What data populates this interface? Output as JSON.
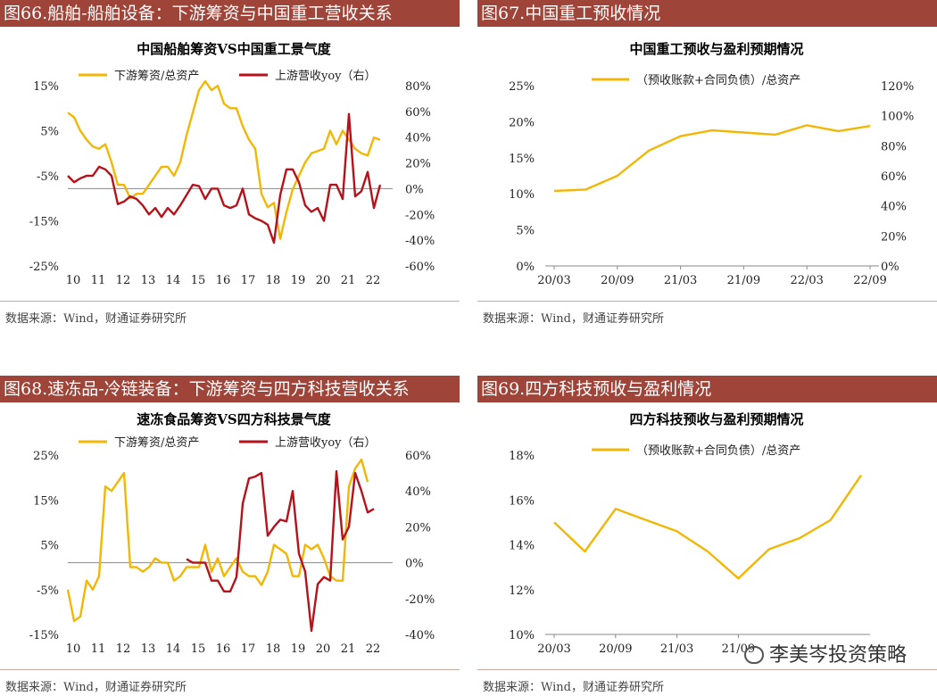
{
  "panels": [
    {
      "banner": "图66.船舶-船舶设备：下游筹资与中国重工营收关系",
      "source": "数据来源：Wind，财通证券研究所"
    },
    {
      "banner": "图67.中国重工预收情况",
      "source": "数据来源：Wind，财通证券研究所"
    },
    {
      "banner": "图68.速冻品-冷链装备：下游筹资与四方科技营收关系",
      "source": "数据来源：Wind，财通证券研究所"
    },
    {
      "banner": "图69.四方科技预收与盈利情况",
      "source": "数据来源：Wind，财通证券研究所"
    }
  ],
  "watermark": "李美岑投资策略",
  "chart_data": [
    {
      "type": "line",
      "title": "中国船舶筹资VS中国重工景气度",
      "xtick_labels": [
        "10",
        "11",
        "12",
        "13",
        "14",
        "15",
        "16",
        "17",
        "18",
        "19",
        "20",
        "21",
        "22"
      ],
      "left_ytick_labels": [
        "15%",
        "5%",
        "-5%",
        "-15%",
        "-25%"
      ],
      "right_ytick_labels": [
        "80%",
        "60%",
        "40%",
        "20%",
        "0%",
        "-20%",
        "-40%",
        "-60%"
      ],
      "ylim_left": [
        -25,
        15
      ],
      "ylim_right": [
        -60,
        80
      ],
      "x_range": [
        2010,
        2023
      ],
      "series": [
        {
          "name": "下游筹资/总资产",
          "axis": "left",
          "color": "#f2b705",
          "x": [
            2010.0,
            2010.25,
            2010.5,
            2010.75,
            2011.0,
            2011.25,
            2011.5,
            2011.75,
            2012.0,
            2012.25,
            2012.5,
            2012.75,
            2013.0,
            2013.25,
            2013.5,
            2013.75,
            2014.0,
            2014.25,
            2014.5,
            2014.75,
            2015.0,
            2015.25,
            2015.5,
            2015.75,
            2016.0,
            2016.25,
            2016.5,
            2016.75,
            2017.0,
            2017.25,
            2017.5,
            2017.75,
            2018.0,
            2018.25,
            2018.5,
            2018.75,
            2019.0,
            2019.25,
            2019.5,
            2019.75,
            2020.0,
            2020.25,
            2020.5,
            2020.75,
            2021.0,
            2021.25,
            2021.5,
            2021.75,
            2022.0,
            2022.25,
            2022.5
          ],
          "values": [
            9,
            8,
            5,
            3,
            1.5,
            1,
            2,
            -2,
            -7,
            -7,
            -10,
            -9,
            -9,
            -7,
            -5,
            -3,
            -3,
            -5,
            -2,
            4,
            9,
            14,
            16,
            14,
            15,
            11,
            10,
            10,
            6,
            3,
            1,
            -9,
            -12,
            -11,
            -19,
            -13,
            -8,
            -5,
            -2,
            0,
            0.5,
            1,
            5,
            2,
            5,
            3,
            1,
            0,
            -0.5,
            3.5,
            3
          ]
        },
        {
          "name": "上游营收yoy（右）",
          "axis": "right",
          "color": "#b5121b",
          "x": [
            2010.0,
            2010.25,
            2010.5,
            2010.75,
            2011.0,
            2011.25,
            2011.5,
            2011.75,
            2012.0,
            2012.25,
            2012.5,
            2012.75,
            2013.0,
            2013.25,
            2013.5,
            2013.75,
            2014.0,
            2014.25,
            2014.5,
            2014.75,
            2015.0,
            2015.25,
            2015.5,
            2015.75,
            2016.0,
            2016.25,
            2016.5,
            2016.75,
            2017.0,
            2017.25,
            2017.5,
            2017.75,
            2018.0,
            2018.25,
            2018.5,
            2018.75,
            2019.0,
            2019.25,
            2019.5,
            2019.75,
            2020.0,
            2020.25,
            2020.5,
            2020.75,
            2021.0,
            2021.25,
            2021.5,
            2021.75,
            2022.0,
            2022.25,
            2022.5
          ],
          "values": [
            10,
            5,
            8,
            10,
            10,
            17,
            15,
            10,
            -12,
            -10,
            -6,
            -8,
            -13,
            -20,
            -15,
            -22,
            -15,
            -20,
            -13,
            -5,
            3,
            2,
            -8,
            0,
            0,
            -13,
            -15,
            -13,
            0,
            -20,
            -23,
            -25,
            -28,
            -42,
            -5,
            15,
            15,
            5,
            -13,
            -18,
            -15,
            -25,
            3,
            3,
            -8,
            58,
            -6,
            -2,
            13,
            -15,
            3
          ]
        }
      ]
    },
    {
      "type": "line",
      "title": "中国重工预收与盈利预期情况",
      "xtick_labels": [
        "20/03",
        "20/09",
        "21/03",
        "21/09",
        "22/03",
        "22/09"
      ],
      "left_ytick_labels": [
        "25%",
        "20%",
        "15%",
        "10%",
        "5%",
        "0%"
      ],
      "right_ytick_labels": [
        "120%",
        "100%",
        "80%",
        "60%",
        "40%",
        "20%",
        "0%"
      ],
      "ylim_left": [
        0,
        25
      ],
      "ylim_right": [
        0,
        120
      ],
      "series": [
        {
          "name": "（预收账款+合同负债）/总资产",
          "axis": "left",
          "color": "#f2b705",
          "x": [
            0,
            0.5,
            1,
            1.5,
            2,
            2.5,
            3,
            3.5,
            4,
            4.5,
            5
          ],
          "values": [
            10.4,
            10.6,
            12.5,
            16,
            18,
            18.8,
            18.5,
            18.2,
            19.5,
            18.7,
            19.4
          ]
        }
      ]
    },
    {
      "type": "line",
      "title": "速冻食品筹资VS四方科技景气度",
      "xtick_labels": [
        "10",
        "11",
        "12",
        "13",
        "14",
        "15",
        "16",
        "17",
        "18",
        "19",
        "20",
        "21",
        "22"
      ],
      "left_ytick_labels": [
        "25%",
        "15%",
        "5%",
        "-5%",
        "-15%"
      ],
      "right_ytick_labels": [
        "60%",
        "40%",
        "20%",
        "0%",
        "-20%",
        "-40%"
      ],
      "ylim_left": [
        -15,
        25
      ],
      "ylim_right": [
        -40,
        60
      ],
      "x_range": [
        2010,
        2023
      ],
      "series": [
        {
          "name": "下游筹资/总资产",
          "axis": "left",
          "color": "#f2b705",
          "x": [
            2010.0,
            2010.25,
            2010.5,
            2010.75,
            2011.0,
            2011.25,
            2011.5,
            2011.75,
            2012.0,
            2012.25,
            2012.5,
            2012.75,
            2013.0,
            2013.25,
            2013.5,
            2013.75,
            2014.0,
            2014.25,
            2014.5,
            2014.75,
            2015.0,
            2015.25,
            2015.5,
            2015.75,
            2016.0,
            2016.25,
            2016.5,
            2016.75,
            2017.0,
            2017.25,
            2017.5,
            2017.75,
            2018.0,
            2018.25,
            2018.5,
            2018.75,
            2019.0,
            2019.25,
            2019.5,
            2019.75,
            2020.0,
            2020.25,
            2020.5,
            2020.75,
            2021.0,
            2021.25,
            2021.5,
            2021.75,
            2022.0,
            2022.25,
            2022.5
          ],
          "values": [
            -5,
            -12,
            -11,
            -3,
            -5,
            -2,
            18,
            17,
            19,
            21,
            0,
            0,
            -1,
            0,
            2,
            1,
            1,
            -3,
            -2,
            0,
            0,
            0,
            5,
            -1,
            2,
            -2,
            0,
            2,
            -1,
            -2,
            -2,
            -4,
            -1,
            5,
            4,
            3,
            -2,
            -2,
            5,
            4,
            5,
            2,
            -2,
            -3,
            -3,
            18,
            22,
            24,
            19,
            null,
            null
          ]
        },
        {
          "name": "上游营收yoy（右）",
          "axis": "right",
          "color": "#b5121b",
          "x": [
            2014.75,
            2015.0,
            2015.25,
            2015.5,
            2015.75,
            2016.0,
            2016.25,
            2016.5,
            2016.75,
            2017.0,
            2017.25,
            2017.5,
            2017.75,
            2018.0,
            2018.25,
            2018.5,
            2018.75,
            2019.0,
            2019.25,
            2019.5,
            2019.75,
            2020.0,
            2020.25,
            2020.5,
            2020.75,
            2021.0,
            2021.25,
            2021.5,
            2021.75,
            2022.0,
            2022.25,
            2022.5
          ],
          "values": [
            2,
            0,
            0,
            0,
            -10,
            -10,
            -16,
            -16,
            -8,
            33,
            47,
            48,
            50,
            15,
            20,
            24,
            23,
            40,
            5,
            -5,
            -38,
            -12,
            -8,
            -10,
            51,
            13,
            20,
            50,
            40,
            28,
            30,
            null
          ]
        }
      ]
    },
    {
      "type": "line",
      "title": "四方科技预收与盈利预期情况",
      "xtick_labels": [
        "20/03",
        "20/09",
        "21/03",
        "21/09"
      ],
      "left_ytick_labels": [
        "18%",
        "16%",
        "14%",
        "12%",
        "10%"
      ],
      "ylim_left": [
        10,
        18
      ],
      "series": [
        {
          "name": "（预收账款+合同负债）/总资产",
          "axis": "left",
          "color": "#f2b705",
          "x": [
            0,
            0.5,
            1,
            1.5,
            2,
            2.5,
            3,
            3.5,
            4,
            4.5,
            5
          ],
          "values": [
            15,
            13.7,
            15.6,
            15.1,
            14.6,
            13.7,
            12.5,
            13.8,
            14.3,
            15.1,
            17.1
          ]
        }
      ]
    }
  ]
}
